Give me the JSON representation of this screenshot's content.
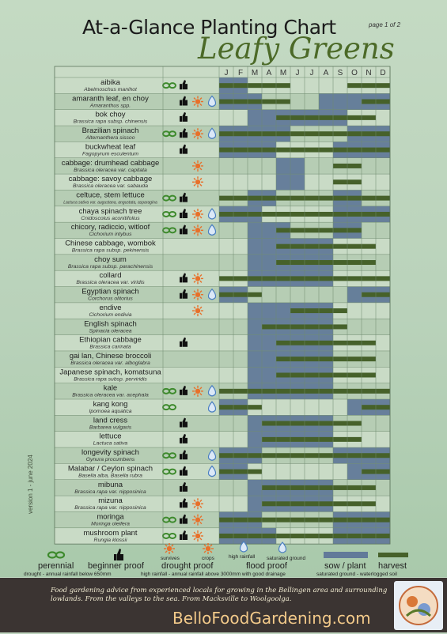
{
  "header": {
    "title": "At-a-Glance Planting Chart",
    "page": "page 1 of 2",
    "subtitle": "Leafy Greens",
    "version": "version 1 - june 2024"
  },
  "legend": {
    "survives": "survives",
    "crops": "crops",
    "high_rainfall": "high rainfall",
    "saturated": "saturated ground",
    "perennial": "perennial",
    "beginner": "beginner proof",
    "drought": "drought proof",
    "flood": "flood proof",
    "sow": "sow / plant",
    "harvest": "harvest",
    "drought_note": "drought - annual rainfall below 650mm",
    "rainfall_note": "high rainfall - annual rainfall above 3000mm with good drainage",
    "saturated_note": "saturated ground - waterlogged soil",
    "icon_colors": {
      "perennial": "#3d8a2c",
      "beginner": "#111111",
      "drought": "#e8702a",
      "flood": "#4a7fc1"
    }
  },
  "footer": {
    "tagline": "Food gardening advice from experienced locals for growing in the Bellingen area and surrounding lowlands. From the valleys to the sea. From Macksville to Woolgoolga.",
    "site": "BelloFoodGardening.com"
  },
  "colors": {
    "sow": "#627a99",
    "harvest": "#46612a",
    "row_light": "#c9dbc6",
    "row_dark": "#b6cdb4",
    "grid": "#6f8a6e"
  },
  "chart_data": {
    "type": "table",
    "months": [
      "J",
      "F",
      "M",
      "A",
      "M",
      "J",
      "J",
      "A",
      "S",
      "O",
      "N",
      "D"
    ],
    "rows": [
      {
        "name": "aibika",
        "latin": "Abelmoschus manihot",
        "icons": [
          "perennial",
          "beginner"
        ],
        "sow": [
          [
            1,
            2
          ]
        ],
        "harvest": [
          [
            1,
            5
          ],
          [
            10,
            12
          ]
        ]
      },
      {
        "name": "amaranth leaf, en choy",
        "latin": "Amaranthus spp.",
        "icons": [
          "beginner",
          "drought",
          "flood"
        ],
        "sow": [
          [
            1,
            3
          ],
          [
            8,
            12
          ]
        ],
        "harvest": [
          [
            1,
            5
          ],
          [
            11,
            12
          ]
        ]
      },
      {
        "name": "bok choy",
        "latin": "Brassica rapa subsp. chinensis",
        "icons": [
          "beginner"
        ],
        "sow": [
          [
            3,
            9
          ]
        ],
        "harvest": [
          [
            5,
            11
          ]
        ]
      },
      {
        "name": "Brazilian spinach",
        "latin": "Alternanthera sissoo",
        "icons": [
          "perennial",
          "beginner",
          "drought",
          "flood"
        ],
        "sow": [
          [
            1,
            5
          ],
          [
            10,
            12
          ]
        ],
        "harvest": [
          [
            1,
            12
          ]
        ]
      },
      {
        "name": "buckwheat leaf",
        "latin": "Fagopyrum esculentum",
        "icons": [
          "beginner"
        ],
        "sow": [
          [
            1,
            4
          ],
          [
            9,
            12
          ]
        ],
        "harvest": [
          [
            1,
            12
          ]
        ]
      },
      {
        "name": "cabbage: drumhead cabbage",
        "latin": "Brassica oleracea var. capitata",
        "icons": [
          "drought"
        ],
        "sow": [
          [
            5,
            6
          ]
        ],
        "harvest": [
          [
            9,
            10
          ]
        ]
      },
      {
        "name": "cabbage: savoy cabbage",
        "latin": "Brassica oleracea var. sabauda",
        "icons": [
          "drought"
        ],
        "sow": [
          [
            5,
            6
          ]
        ],
        "harvest": [
          [
            9,
            10
          ]
        ]
      },
      {
        "name": "celtuce, stem lettuce",
        "latin": "Lactuca sativa var. augustana, angustata, asparagina",
        "icons": [
          "perennial",
          "beginner"
        ],
        "sow": [
          [
            3,
            4
          ],
          [
            9,
            10
          ]
        ],
        "harvest": [
          [
            1,
            12
          ]
        ]
      },
      {
        "name": "chaya spinach tree",
        "latin": "Cnidoscolus aconitifolius",
        "icons": [
          "perennial",
          "beginner",
          "drought",
          "flood"
        ],
        "sow": [
          [
            1,
            3
          ],
          [
            9,
            12
          ]
        ],
        "harvest": [
          [
            1,
            12
          ]
        ]
      },
      {
        "name": "chicory, radiccio, witloof",
        "latin": "Cichorium intybus",
        "icons": [
          "perennial",
          "beginner",
          "drought",
          "flood"
        ],
        "sow": [
          [
            3,
            5
          ],
          [
            9,
            10
          ]
        ],
        "harvest": [
          [
            5,
            10
          ]
        ]
      },
      {
        "name": "Chinese cabbage, wombok",
        "latin": "Brassica rapa subsp. pekinensis",
        "icons": [],
        "sow": [
          [
            3,
            8
          ]
        ],
        "harvest": [
          [
            5,
            11
          ]
        ]
      },
      {
        "name": "choy sum",
        "latin": "Brassica rapa subsp. parachinensis",
        "icons": [],
        "sow": [
          [
            3,
            8
          ]
        ],
        "harvest": [
          [
            5,
            11
          ]
        ]
      },
      {
        "name": "collard",
        "latin": "Brassica oleracea var. viridis",
        "icons": [
          "beginner",
          "drought"
        ],
        "sow": [
          [
            3,
            8
          ]
        ],
        "harvest": [
          [
            1,
            12
          ]
        ]
      },
      {
        "name": "Egyptian spinach",
        "latin": "Corchorus olitorius",
        "icons": [
          "beginner",
          "drought",
          "flood"
        ],
        "sow": [
          [
            1,
            2
          ],
          [
            10,
            12
          ]
        ],
        "harvest": [
          [
            1,
            3
          ],
          [
            11,
            12
          ]
        ]
      },
      {
        "name": "endive",
        "latin": "Cichorium endivia",
        "icons": [
          "drought"
        ],
        "sow": [
          [
            3,
            8
          ]
        ],
        "harvest": [
          [
            6,
            9
          ]
        ]
      },
      {
        "name": "English spinach",
        "latin": "Spinacia oleracea",
        "icons": [],
        "sow": [
          [
            3,
            8
          ]
        ],
        "harvest": [
          [
            4,
            9
          ]
        ]
      },
      {
        "name": "Ethiopian cabbage",
        "latin": "Brassica carinata",
        "icons": [
          "beginner"
        ],
        "sow": [
          [
            3,
            8
          ]
        ],
        "harvest": [
          [
            5,
            11
          ]
        ]
      },
      {
        "name": "gai lan, Chinese broccoli",
        "latin": "Brassica oleracea var. alboglabra",
        "icons": [],
        "sow": [
          [
            3,
            8
          ]
        ],
        "harvest": [
          [
            5,
            11
          ]
        ]
      },
      {
        "name": "Japanese spinach, komatsuna",
        "latin": "Brassica rapa subsp. perviridis",
        "icons": [],
        "sow": [
          [
            3,
            8
          ]
        ],
        "harvest": [
          [
            5,
            11
          ]
        ]
      },
      {
        "name": "kale",
        "latin": "Brassica oleracea var. acephala",
        "icons": [
          "perennial",
          "beginner",
          "drought",
          "flood"
        ],
        "sow": [
          [
            3,
            8
          ]
        ],
        "harvest": [
          [
            1,
            12
          ]
        ]
      },
      {
        "name": "kang kong",
        "latin": "Ipomoea aquatica",
        "icons": [
          "perennial",
          "flood"
        ],
        "sow": [
          [
            1,
            2
          ],
          [
            10,
            12
          ]
        ],
        "harvest": [
          [
            1,
            3
          ],
          [
            11,
            12
          ]
        ]
      },
      {
        "name": "land cress",
        "latin": "Barbarea vulgaris",
        "icons": [
          "beginner"
        ],
        "sow": [
          [
            3,
            8
          ]
        ],
        "harvest": [
          [
            4,
            10
          ]
        ]
      },
      {
        "name": "lettuce",
        "latin": "Lactuca sativa",
        "icons": [
          "beginner"
        ],
        "sow": [
          [
            3,
            8
          ]
        ],
        "harvest": [
          [
            4,
            10
          ]
        ]
      },
      {
        "name": "longevity spinach",
        "latin": "Gynura procumbens",
        "icons": [
          "perennial",
          "beginner",
          "flood"
        ],
        "sow": [
          [
            1,
            3
          ],
          [
            9,
            12
          ]
        ],
        "harvest": [
          [
            1,
            12
          ]
        ]
      },
      {
        "name": "Malabar / Ceylon spinach",
        "latin": "Basella alba, Basella rubra",
        "icons": [
          "perennial",
          "beginner",
          "flood"
        ],
        "sow": [
          [
            1,
            2
          ],
          [
            10,
            12
          ]
        ],
        "harvest": [
          [
            1,
            3
          ],
          [
            11,
            12
          ]
        ]
      },
      {
        "name": "mibuna",
        "latin": "Brassica rapa var. nipposinica",
        "icons": [
          "beginner"
        ],
        "sow": [
          [
            3,
            8
          ]
        ],
        "harvest": [
          [
            4,
            11
          ]
        ]
      },
      {
        "name": "mizuna",
        "latin": "Brassica rapa var. nipposinica",
        "icons": [
          "beginner",
          "drought"
        ],
        "sow": [
          [
            3,
            8
          ]
        ],
        "harvest": [
          [
            4,
            11
          ]
        ]
      },
      {
        "name": "moringa",
        "latin": "Moringa oleifera",
        "icons": [
          "perennial",
          "beginner",
          "drought"
        ],
        "sow": [
          [
            1,
            3
          ],
          [
            9,
            12
          ]
        ],
        "harvest": [
          [
            1,
            12
          ]
        ]
      },
      {
        "name": "mushroom plant",
        "latin": "Rungia klossii",
        "icons": [
          "perennial",
          "beginner",
          "drought"
        ],
        "sow": [
          [
            1,
            4
          ],
          [
            9,
            12
          ]
        ],
        "harvest": [
          [
            1,
            12
          ]
        ]
      }
    ]
  }
}
